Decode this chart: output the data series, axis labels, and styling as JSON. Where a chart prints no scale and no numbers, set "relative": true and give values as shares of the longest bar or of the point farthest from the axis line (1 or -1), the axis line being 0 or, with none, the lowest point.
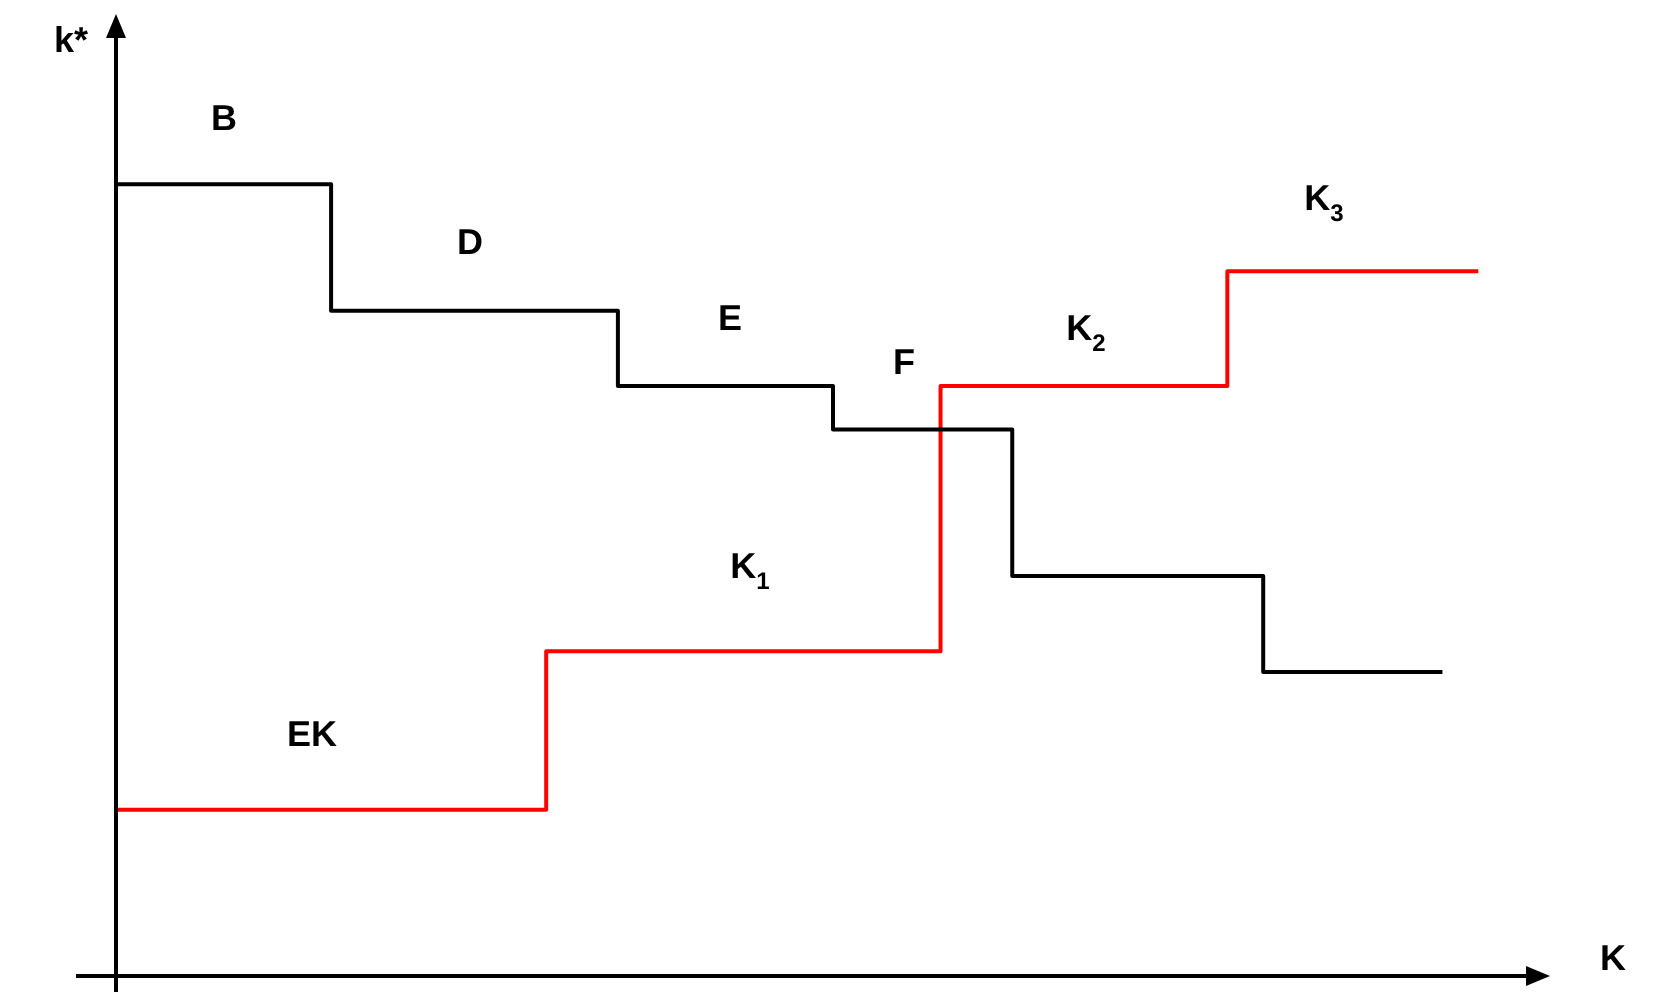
{
  "chart_data": {
    "type": "step",
    "relative": true,
    "xlabel": "K",
    "ylabel": "k*",
    "tick_labels": false,
    "legend": false,
    "marker": "none",
    "line_style": "solid",
    "categories": [
      null,
      null,
      null,
      null,
      null,
      null,
      null,
      null,
      null,
      null,
      null,
      null,
      null,
      null,
      null,
      null,
      null,
      null,
      null,
      null,
      null,
      null,
      null,
      null,
      null,
      null,
      null,
      null,
      null,
      null,
      null,
      null,
      null,
      null,
      null,
      null,
      null,
      null,
      null,
      null,
      null
    ],
    "series": [
      {
        "color": "#000000",
        "values": [
          1,
          1,
          1,
          1,
          1,
          1,
          0.84,
          0.84,
          0.84,
          0.84,
          0.84,
          0.84,
          0.84,
          0.84,
          0.745,
          0.745,
          0.745,
          0.745,
          0.745,
          0.745,
          0.69,
          0.69,
          0.69,
          0.69,
          0.69,
          0.505,
          0.505,
          0.505,
          0.505,
          0.505,
          0.505,
          0.505,
          0.384,
          0.384,
          0.384,
          0.384,
          0.384,
          0.384,
          null,
          null,
          null
        ]
      },
      {
        "color": "#ff0000",
        "values": [
          0.21,
          0.21,
          0.21,
          0.21,
          0.21,
          0.21,
          0.21,
          0.21,
          0.21,
          0.21,
          0.21,
          0.21,
          0.41,
          0.41,
          0.41,
          0.41,
          0.41,
          0.41,
          0.41,
          0.41,
          0.41,
          0.41,
          0.41,
          0.745,
          0.745,
          0.745,
          0.745,
          0.745,
          0.745,
          0.745,
          0.745,
          0.89,
          0.89,
          0.89,
          0.89,
          0.89,
          0.89,
          0.89,
          0.89,
          null,
          null
        ]
      }
    ],
    "annotations": [
      "B",
      "D",
      "E",
      "F",
      "K$_{1}$",
      "K$_{2}$",
      "K$_{3}$",
      "EK"
    ]
  }
}
